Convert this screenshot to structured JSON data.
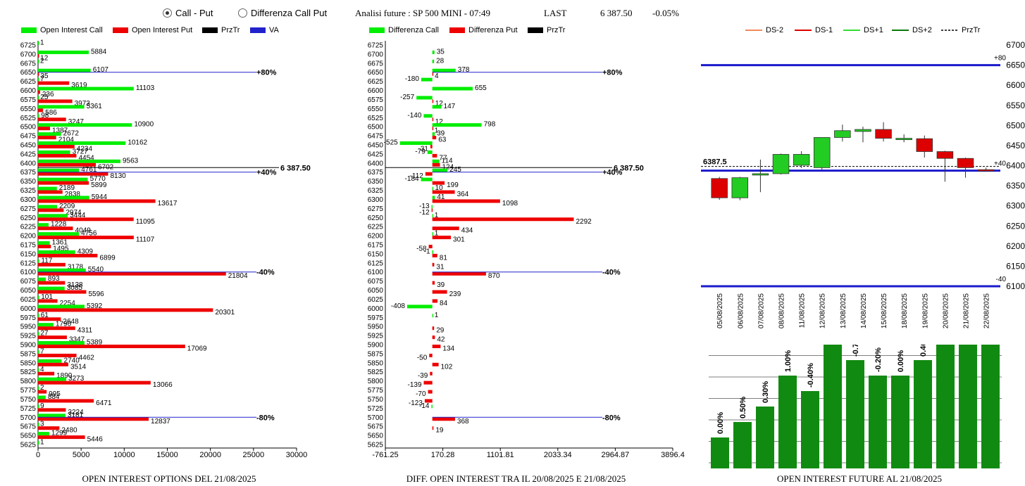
{
  "header": {
    "radio_call_put": "Call - Put",
    "radio_diff": "Differenza Call Put",
    "title": "Analisi future : SP 500 MINI - 07:49",
    "last_label": "LAST",
    "last_value": "6 387.50",
    "change": "-0.05%"
  },
  "legend1": [
    "Open Interest Call",
    "Open Interest Put",
    "PrzTr",
    "VA"
  ],
  "legend2": [
    "Differenza Call",
    "Differenza Put",
    "PrzTr"
  ],
  "legend3": [
    "DS-2",
    "DS-1",
    "DS+1",
    "DS+2",
    "PrzTr"
  ],
  "captions": {
    "c1": "OPEN INTEREST OPTIONS DEL 21/08/2025",
    "c2": "DIFF. OPEN INTEREST TRA IL 20/08/2025 E 21/08/2025",
    "c3": "OPEN INTEREST FUTURE AL 21/08/2025"
  },
  "colors": {
    "call": "#00ee00",
    "put": "#ee0000",
    "va": "#2222cc",
    "przTr": "#000000",
    "dsMinus2": "#f08a5d",
    "dsMinus1": "#dd0000",
    "dsPlus1": "#33dd33",
    "dsPlus2": "#0a7a0a",
    "oiBar": "#118a11"
  },
  "chart_data": [
    {
      "type": "bar",
      "title": "OPEN INTEREST OPTIONS DEL 21/08/2025",
      "orientation": "horizontal",
      "strikes": [
        "6725",
        "6700",
        "6675",
        "6650",
        "6625",
        "6600",
        "6575",
        "6550",
        "6525",
        "6500",
        "6475",
        "6450",
        "6425",
        "6400",
        "6375",
        "6350",
        "6325",
        "6300",
        "6275",
        "6250",
        "6225",
        "6200",
        "6175",
        "6150",
        "6125",
        "6100",
        "6075",
        "6050",
        "6025",
        "6000",
        "5975",
        "5950",
        "5925",
        "5900",
        "5875",
        "5850",
        "5825",
        "5800",
        "5775",
        "5750",
        "5725",
        "5700",
        "5675",
        "5650",
        "5625"
      ],
      "series": [
        {
          "name": "Open Interest Call",
          "values": [
            1,
            5884,
            2,
            6107,
            7,
            11103,
            25,
            5361,
            98,
            10900,
            2672,
            10162,
            3727,
            9563,
            4761,
            5770,
            2189,
            5944,
            2209,
            3444,
            1228,
            4756,
            1361,
            4309,
            117,
            5540,
            893,
            3085,
            101,
            5392,
            61,
            1790,
            27,
            5389,
            7,
            2740,
            4,
            3273,
            2,
            884,
            9,
            3181,
            3,
            1299,
            1
          ]
        },
        {
          "name": "Open Interest Put",
          "values": [
            null,
            12,
            null,
            35,
            3619,
            236,
            3973,
            586,
            3247,
            1387,
            2104,
            4234,
            4454,
            6702,
            8130,
            5899,
            2838,
            13617,
            2974,
            11095,
            4049,
            11107,
            1495,
            6899,
            3178,
            21804,
            3138,
            5596,
            2254,
            20301,
            2648,
            4311,
            3347,
            17069,
            4462,
            3514,
            1890,
            13066,
            995,
            6471,
            3224,
            12837,
            2480,
            5446,
            null
          ]
        }
      ],
      "markers": [
        {
          "label": "+80%",
          "strike": "6650"
        },
        {
          "label": "+40%",
          "strike": "6375"
        },
        {
          "label": "-40%",
          "strike": "6100"
        },
        {
          "label": "-80%",
          "strike": "5700"
        }
      ],
      "price_line": {
        "label": "6 387.50",
        "value": 6387.5
      },
      "xlim": [
        0,
        30000
      ],
      "xticks": [
        "0",
        "5000",
        "10000",
        "15000",
        "20000",
        "25000",
        "30000"
      ]
    },
    {
      "type": "bar",
      "title": "DIFF. OPEN INTEREST TRA IL 20/08/2025 E 21/08/2025",
      "orientation": "horizontal",
      "strikes": [
        "6725",
        "6700",
        "6675",
        "6650",
        "6625",
        "6600",
        "6575",
        "6550",
        "6525",
        "6500",
        "6475",
        "6450",
        "6425",
        "6400",
        "6375",
        "6350",
        "6325",
        "6300",
        "6275",
        "6250",
        "6225",
        "6200",
        "6175",
        "6150",
        "6125",
        "6100",
        "6075",
        "6050",
        "6025",
        "6000",
        "5975",
        "5950",
        "5925",
        "5900",
        "5875",
        "5850",
        "5825",
        "5800",
        "5775",
        "5750",
        "5725",
        "5700",
        "5675",
        "5650",
        "5625"
      ],
      "series": [
        {
          "name": "Differenza Call",
          "values": [
            null,
            35,
            28,
            378,
            -180,
            655,
            -257,
            147,
            -140,
            798,
            39,
            -525,
            -79,
            114,
            245,
            -184,
            10,
            41,
            -13,
            1,
            null,
            1,
            null,
            -1,
            null,
            null,
            null,
            null,
            null,
            -408,
            1,
            null,
            null,
            null,
            null,
            null,
            null,
            null,
            null,
            null,
            -14,
            null,
            null,
            null,
            null
          ]
        },
        {
          "name": "Differenza Put",
          "values": [
            null,
            null,
            null,
            4,
            null,
            null,
            12,
            null,
            12,
            1,
            63,
            -31,
            77,
            124,
            -112,
            199,
            364,
            1098,
            -12,
            2292,
            434,
            301,
            -58,
            81,
            31,
            870,
            39,
            239,
            84,
            null,
            null,
            29,
            42,
            134,
            -50,
            102,
            -39,
            -139,
            -70,
            -123,
            null,
            368,
            19,
            null,
            null
          ]
        }
      ],
      "markers": [
        {
          "label": "+80%",
          "strike": "6650"
        },
        {
          "label": "+40%",
          "strike": "6375"
        },
        {
          "label": "-40%",
          "strike": "6100"
        },
        {
          "label": "-80%",
          "strike": "5700"
        }
      ],
      "price_line": {
        "label": "6 387.50",
        "value": 6387.5
      },
      "xlim": [
        -761.25,
        3896.4
      ],
      "xticks": [
        "-761.25",
        "170.28",
        "1101.81",
        "2033.34",
        "2964.87",
        "3896.4"
      ]
    },
    {
      "type": "candlestick",
      "dates": [
        "05/08/2025",
        "06/08/2025",
        "07/08/2025",
        "08/08/2025",
        "11/08/2025",
        "12/08/2025",
        "13/08/2025",
        "14/08/2025",
        "15/08/2025",
        "18/08/2025",
        "19/08/2025",
        "20/08/2025",
        "21/08/2025",
        "22/08/2025"
      ],
      "ohlc": [
        [
          6368,
          6372,
          6315,
          6320
        ],
        [
          6320,
          6372,
          6314,
          6370
        ],
        [
          6378,
          6415,
          6334,
          6380
        ],
        [
          6380,
          6430,
          6378,
          6428
        ],
        [
          6401,
          6436,
          6394,
          6428
        ],
        [
          6395,
          6470,
          6390,
          6470
        ],
        [
          6470,
          6502,
          6460,
          6487
        ],
        [
          6485,
          6497,
          6458,
          6490
        ],
        [
          6490,
          6508,
          6460,
          6468
        ],
        [
          6468,
          6478,
          6458,
          6468
        ],
        [
          6467,
          6475,
          6420,
          6435
        ],
        [
          6435,
          6437,
          6360,
          6418
        ],
        [
          6418,
          6420,
          6370,
          6395
        ],
        [
          6390,
          6395,
          6386,
          6387.5
        ]
      ],
      "price_label": "6387.5",
      "levels": [
        {
          "label": "+80",
          "value": 6650
        },
        {
          "label": "+40",
          "value": 6387.5
        },
        {
          "label": "-40",
          "value": 6100
        }
      ],
      "ylim": [
        6100,
        6700
      ],
      "yticks": [
        "6700",
        "6650",
        "6600",
        "6550",
        "6500",
        "6450",
        "6400",
        "6350",
        "6300",
        "6250",
        "6200",
        "6150",
        "6100"
      ]
    },
    {
      "type": "bar",
      "title": "OPEN INTEREST FUTURE AL 21/08/2025",
      "values": [
        2,
        3,
        4,
        6,
        5,
        8,
        7,
        6,
        6,
        7,
        8,
        8,
        9
      ],
      "labels": [
        "0.00%",
        "0.50%",
        "0.30%",
        "1.00%",
        "-0.40%",
        "1.30%",
        "-0.70%",
        "-0.20%",
        "0.00%",
        "0.40%",
        "0.40%",
        "0.00%",
        "0.40%"
      ]
    }
  ]
}
